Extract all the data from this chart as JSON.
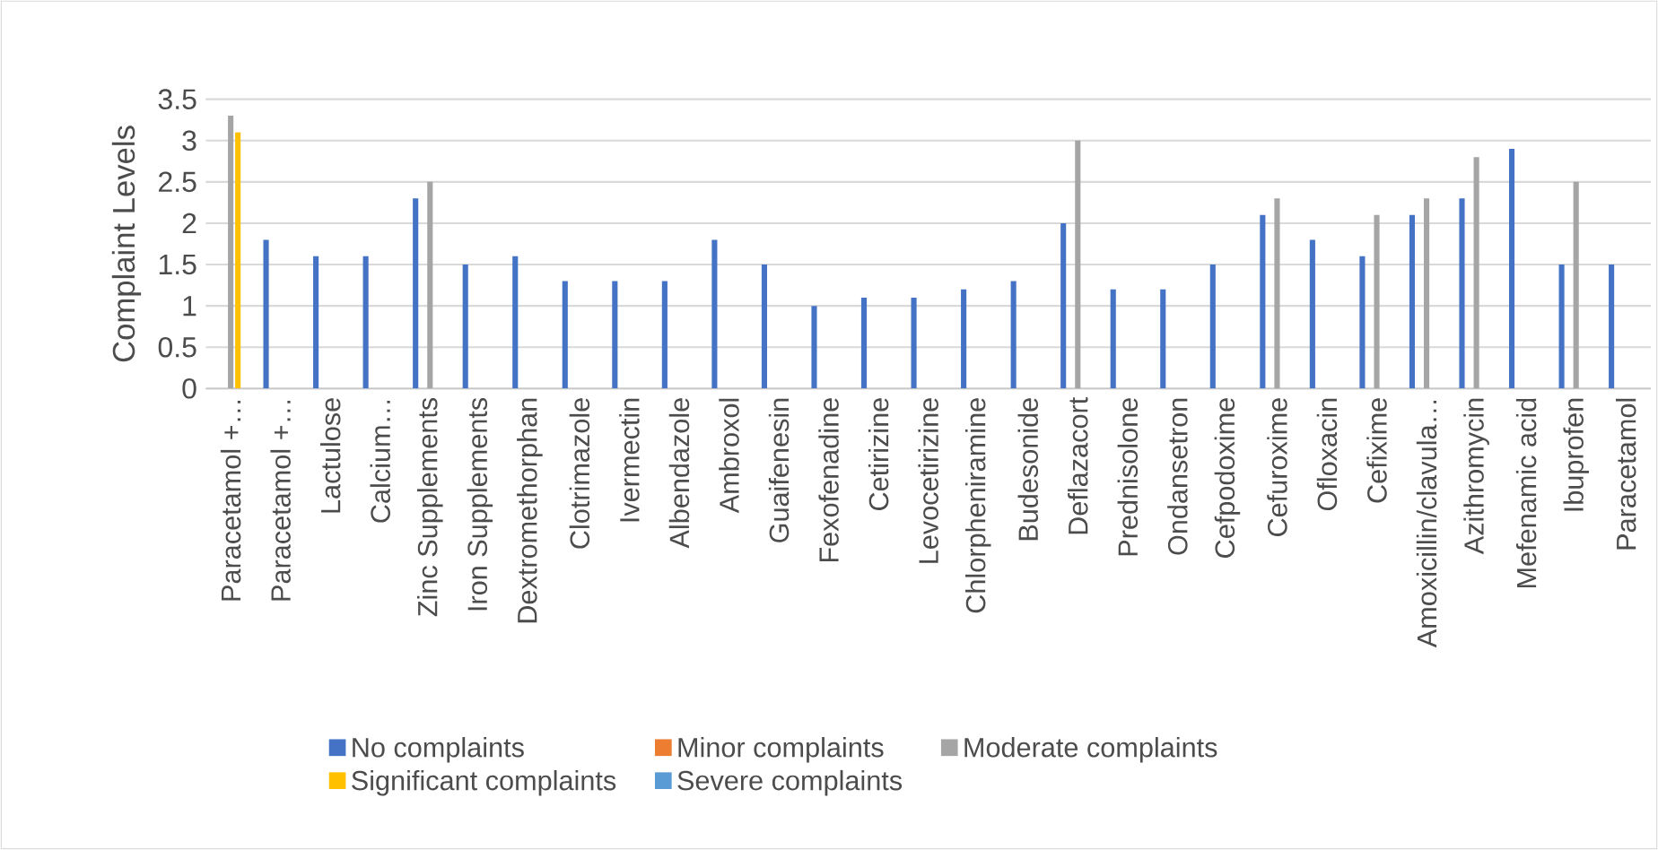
{
  "chart_data": {
    "type": "bar",
    "ylabel": "Complaint Levels",
    "categories": [
      "Paracetamol +…",
      "Paracetamol +…",
      "Lactulose",
      "Calcium…",
      "Zinc Supplements",
      "Iron Supplements",
      "Dextromethorphan",
      "Clotrimazole",
      "Ivermectin",
      "Albendazole",
      "Ambroxol",
      "Guaifenesin",
      "Fexofenadine",
      "Cetirizine",
      "Levocetirizine",
      "Chlorpheniramine",
      "Budesonide",
      "Deflazacort",
      "Prednisolone",
      "Ondansetron",
      "Cefpodoxime",
      "Cefuroxime",
      "Ofloxacin",
      "Cefixime",
      "Amoxicillin/clavula…",
      "Azithromycin",
      "Mefenamic acid",
      "Ibuprofen",
      "Paracetamol"
    ],
    "series": [
      {
        "name": "No complaints",
        "color": "#4472c4",
        "values": [
          null,
          1.8,
          1.6,
          1.6,
          2.3,
          1.5,
          1.6,
          1.3,
          1.3,
          1.3,
          1.8,
          1.5,
          1.0,
          1.1,
          1.1,
          1.2,
          1.3,
          2.0,
          1.2,
          1.2,
          1.5,
          2.1,
          1.8,
          1.6,
          2.1,
          2.3,
          2.9,
          1.5,
          1.5
        ]
      },
      {
        "name": "Minor complaints",
        "color": "#ed7d31",
        "values": [
          null,
          null,
          null,
          null,
          null,
          null,
          null,
          null,
          null,
          null,
          null,
          null,
          null,
          null,
          null,
          null,
          null,
          null,
          null,
          null,
          null,
          null,
          null,
          null,
          null,
          null,
          null,
          null,
          null
        ]
      },
      {
        "name": "Moderate complaints",
        "color": "#a5a5a5",
        "values": [
          3.3,
          null,
          null,
          null,
          2.5,
          null,
          null,
          null,
          null,
          null,
          null,
          null,
          null,
          null,
          null,
          null,
          null,
          3.0,
          null,
          null,
          null,
          2.3,
          null,
          2.1,
          2.3,
          2.8,
          null,
          2.5,
          null
        ]
      },
      {
        "name": "Significant complaints",
        "color": "#ffc000",
        "values": [
          3.1,
          null,
          null,
          null,
          null,
          null,
          null,
          null,
          null,
          null,
          null,
          null,
          null,
          null,
          null,
          null,
          null,
          null,
          null,
          null,
          null,
          null,
          null,
          null,
          null,
          null,
          null,
          null,
          null
        ]
      },
      {
        "name": "Severe complaints",
        "color": "#5b9bd5",
        "values": [
          null,
          null,
          null,
          null,
          null,
          null,
          null,
          null,
          null,
          null,
          null,
          null,
          null,
          null,
          null,
          null,
          null,
          null,
          null,
          null,
          null,
          null,
          null,
          null,
          null,
          null,
          null,
          null,
          null
        ]
      }
    ],
    "ylim": [
      0,
      3.5
    ],
    "yticks": [
      0,
      0.5,
      1,
      1.5,
      2,
      2.5,
      3,
      3.5
    ],
    "grid": "y",
    "legend": "bottom"
  }
}
